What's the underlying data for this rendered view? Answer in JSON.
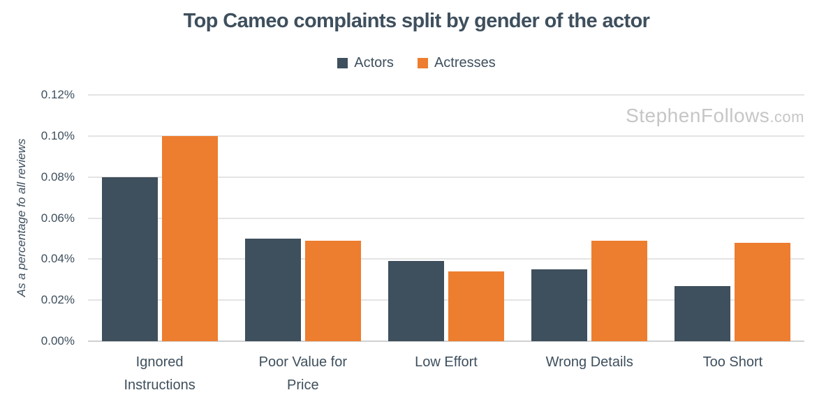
{
  "title": "Top Cameo complaints split by gender of the actor",
  "watermark": {
    "main": "StephenFollows",
    "suffix": ".com"
  },
  "colors": {
    "actors": "#3e4f5d",
    "actresses": "#ed7d2f",
    "text": "#3e4f5d",
    "gridline": "#e4e4e4",
    "axis_line": "#d0d0d0",
    "watermark": "#c6c6c6"
  },
  "chart_data": {
    "type": "bar",
    "title": "Top Cameo complaints split by gender of the actor",
    "categories": [
      "Ignored Instructions",
      "Poor Value for Price",
      "Low Effort",
      "Wrong Details",
      "Too Short"
    ],
    "series": [
      {
        "name": "Actors",
        "color": "#3e4f5d",
        "values": [
          0.08,
          0.05,
          0.039,
          0.035,
          0.027
        ]
      },
      {
        "name": "Actresses",
        "color": "#ed7d2f",
        "values": [
          0.1,
          0.049,
          0.034,
          0.049,
          0.048
        ]
      }
    ],
    "xlabel": "",
    "ylabel": "As a percentage fo all reviews",
    "yticks": [
      "0.12%",
      "0.10%",
      "0.08%",
      "0.06%",
      "0.04%",
      "0.02%",
      "0.00%"
    ],
    "ylim": [
      0,
      0.12
    ],
    "unit": "%",
    "grid": true,
    "legend_position": "top-center"
  }
}
